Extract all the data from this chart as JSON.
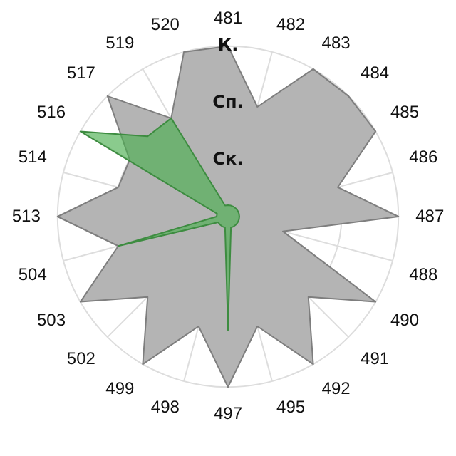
{
  "chart_data": {
    "type": "radar",
    "categories": [
      "481",
      "482",
      "483",
      "484",
      "485",
      "486",
      "487",
      "488",
      "490",
      "491",
      "492",
      "495",
      "497",
      "498",
      "499",
      "502",
      "503",
      "504",
      "513",
      "514",
      "516",
      "517",
      "519",
      "520"
    ],
    "series": [
      {
        "color": "#b4b4b4",
        "values": [
          3,
          2,
          3,
          3,
          3,
          2,
          3,
          1,
          3,
          2,
          3,
          2,
          3,
          2,
          3,
          2,
          3,
          2,
          3,
          2,
          2,
          3,
          2,
          3
        ]
      },
      {
        "color": "#4caf50",
        "values": [
          0.2,
          0.2,
          0.2,
          0.2,
          0.2,
          0.2,
          0.2,
          0.2,
          0.2,
          0.2,
          0.2,
          0.2,
          2,
          0.2,
          0.2,
          0.2,
          0.2,
          2,
          0.2,
          0.2,
          3,
          2,
          2,
          0.2
        ]
      }
    ],
    "ylim": [
      0,
      3
    ],
    "yticks": [
      {
        "value": 1,
        "label": "Ск."
      },
      {
        "value": 2,
        "label": "Сп."
      },
      {
        "value": 3,
        "label": "К."
      }
    ],
    "grid": true,
    "legend": false,
    "marker": "none"
  }
}
